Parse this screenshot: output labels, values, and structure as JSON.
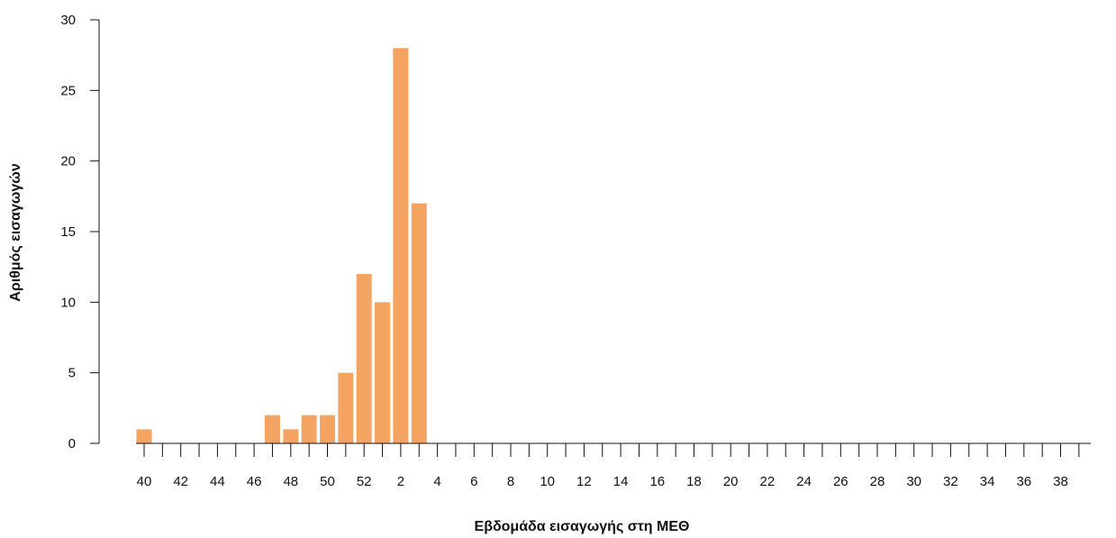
{
  "chart_data": {
    "type": "bar",
    "title": "",
    "xlabel": "Εβδομάδα εισαγωγής στη ΜΕΘ",
    "ylabel": "Αριθμός εισαγωγών",
    "ylim": [
      0,
      30
    ],
    "yticks": [
      0,
      5,
      10,
      15,
      20,
      25,
      30
    ],
    "grid": false,
    "bar_color": "#f4a460",
    "categories": [
      "40",
      "41",
      "42",
      "43",
      "44",
      "45",
      "46",
      "47",
      "48",
      "49",
      "50",
      "51",
      "52",
      "1",
      "2",
      "3",
      "4",
      "5",
      "6",
      "7",
      "8",
      "9",
      "10",
      "11",
      "12",
      "13",
      "14",
      "15",
      "16",
      "17",
      "18",
      "19",
      "20",
      "21",
      "22",
      "23",
      "24",
      "25",
      "26",
      "27",
      "28",
      "29",
      "30",
      "31",
      "32",
      "33",
      "34",
      "35",
      "36",
      "37",
      "38",
      "39"
    ],
    "values": [
      1,
      0,
      0,
      0,
      0,
      0,
      0,
      2,
      1,
      2,
      2,
      5,
      12,
      10,
      28,
      17,
      0,
      0,
      0,
      0,
      0,
      0,
      0,
      0,
      0,
      0,
      0,
      0,
      0,
      0,
      0,
      0,
      0,
      0,
      0,
      0,
      0,
      0,
      0,
      0,
      0,
      0,
      0,
      0,
      0,
      0,
      0,
      0,
      0,
      0,
      0,
      0
    ],
    "xtick_labels": [
      "40",
      "",
      "42",
      "",
      "44",
      "",
      "46",
      "",
      "48",
      "",
      "50",
      "",
      "52",
      "",
      "2",
      "",
      "4",
      "",
      "6",
      "",
      "8",
      "",
      "10",
      "",
      "12",
      "",
      "14",
      "",
      "16",
      "",
      "18",
      "",
      "20",
      "",
      "22",
      "",
      "24",
      "",
      "26",
      "",
      "28",
      "",
      "30",
      "",
      "32",
      "",
      "34",
      "",
      "36",
      "",
      "38",
      ""
    ]
  }
}
